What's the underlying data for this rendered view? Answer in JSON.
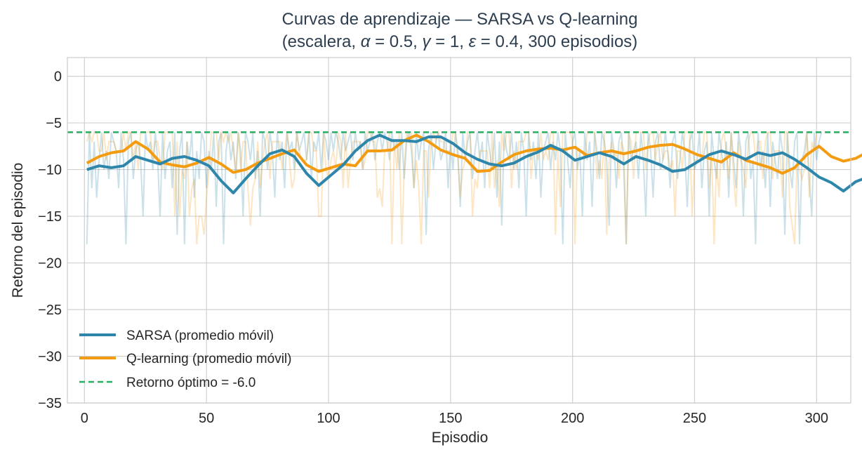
{
  "chart_data": {
    "type": "line",
    "title_line1": "Curvas de aprendizaje — SARSA vs Q-learning",
    "title_line2_prefix": "(escalera, ",
    "title_line2_params": [
      {
        "sym": "α",
        "val": "0.5"
      },
      {
        "sym": "γ",
        "val": "1"
      },
      {
        "sym": "ε",
        "val": "0.4"
      }
    ],
    "title_line2_suffix": "300 episodios)",
    "xlabel": "Episodio",
    "ylabel": "Retorno del episodio",
    "xlim": [
      -7,
      314
    ],
    "ylim": [
      -35,
      2
    ],
    "xticks": [
      0,
      50,
      100,
      150,
      200,
      250,
      300
    ],
    "yticks": [
      0,
      -5,
      -10,
      -15,
      -20,
      -25,
      -30,
      -35
    ],
    "grid": true,
    "legend_position": "lower-left",
    "optimal_return": -6.0,
    "colors": {
      "sarsa": "#2e86ab",
      "qlearning": "#f39c12",
      "optimal": "#27ae60",
      "title": "#2c3e50",
      "grid": "#d0d0d0"
    },
    "series": [
      {
        "name": "SARSA (promedio móvil)",
        "key": "sarsa_ma",
        "x_start": 1,
        "x_step": 5,
        "values": [
          -10,
          -9.6,
          -9.8,
          -9.6,
          -8.6,
          -9.0,
          -9.4,
          -8.8,
          -8.6,
          -9.0,
          -9.6,
          -11.2,
          -12.5,
          -11.0,
          -9.6,
          -8.3,
          -7.9,
          -8.6,
          -10.4,
          -11.7,
          -10.6,
          -9.5,
          -8.0,
          -6.9,
          -6.3,
          -6.9,
          -6.9,
          -7.0,
          -6.5,
          -6.5,
          -7.2,
          -8.2,
          -8.9,
          -9.4,
          -9.6,
          -9.3,
          -8.6,
          -8.1,
          -7.4,
          -8.0,
          -9.0,
          -8.6,
          -8.2,
          -8.6,
          -9.4,
          -8.6,
          -9.0,
          -9.5,
          -10.2,
          -10.0,
          -9.2,
          -8.4,
          -8.0,
          -8.4,
          -8.9,
          -8.2,
          -8.5,
          -8.2,
          -8.9,
          -9.8,
          -10.8,
          -11.4,
          -12.3,
          -11.3,
          -10.8
        ],
        "raw": [
          -18,
          -6,
          -12,
          -7,
          -13,
          -9,
          -6,
          -10,
          -8,
          -11,
          -6,
          -7,
          -8,
          -12,
          -6,
          -9,
          -18,
          -7,
          -6,
          -11,
          -8,
          -7,
          -9,
          -15,
          -6,
          -8,
          -7,
          -10,
          -6,
          -9,
          -15,
          -6,
          -11,
          -8,
          -7,
          -12,
          -6,
          -17,
          -8,
          -6,
          -18,
          -7,
          -9,
          -6,
          -13,
          -8,
          -11,
          -6,
          -7,
          -12,
          -8,
          -10,
          -6,
          -14,
          -7,
          -6,
          -18,
          -8,
          -6,
          -9,
          -7,
          -11,
          -6,
          -8,
          -15,
          -6,
          -7,
          -9,
          -6,
          -11,
          -8,
          -15,
          -6,
          -7,
          -10,
          -6,
          -8,
          -13,
          -6,
          -9,
          -7,
          -12,
          -6,
          -8,
          -7,
          -10,
          -6,
          -8,
          -7,
          -6,
          -9,
          -6,
          -11,
          -7,
          -8,
          -6,
          -10,
          -6,
          -7,
          -9,
          -6,
          -8,
          -6,
          -7,
          -9,
          -6,
          -8,
          -7,
          -6,
          -9,
          -6,
          -8,
          -7,
          -10,
          -6,
          -8,
          -7,
          -6,
          -9,
          -7,
          -6,
          -8,
          -6,
          -7,
          -9,
          -6,
          -8,
          -7,
          -10,
          -6,
          -11,
          -7,
          -6,
          -8,
          -12,
          -6,
          -9,
          -7,
          -6,
          -17,
          -8,
          -6,
          -10,
          -7,
          -6,
          -9,
          -8,
          -6,
          -12,
          -7,
          -10,
          -6,
          -8,
          -14,
          -6,
          -9,
          -7,
          -6,
          -11,
          -8,
          -6,
          -9,
          -7,
          -12,
          -6,
          -8,
          -10,
          -6,
          -13,
          -7,
          -16,
          -6,
          -8,
          -9,
          -6,
          -10,
          -7,
          -12,
          -6,
          -8,
          -15,
          -6,
          -9,
          -7,
          -11,
          -6,
          -13,
          -8,
          -7,
          -6,
          -10,
          -7,
          -9,
          -6,
          -8,
          -18,
          -6,
          -9,
          -12,
          -7,
          -6,
          -10,
          -8,
          -15,
          -6,
          -9,
          -7,
          -14,
          -6,
          -8,
          -11,
          -6,
          -7,
          -9,
          -16,
          -6,
          -8,
          -12,
          -7,
          -6,
          -10,
          -18,
          -6,
          -9,
          -8,
          -7,
          -11,
          -6,
          -9,
          -15,
          -6,
          -8,
          -13,
          -7,
          -6,
          -10,
          -9,
          -6,
          -8,
          -12,
          -7,
          -6,
          -11,
          -9,
          -6,
          -8,
          -14,
          -7,
          -6,
          -10,
          -9,
          -6,
          -12,
          -8,
          -7,
          -15,
          -6,
          -9,
          -11,
          -6,
          -8,
          -10,
          -7,
          -13,
          -6,
          -9,
          -12,
          -6,
          -8,
          -15,
          -7,
          -6,
          -11,
          -9,
          -18,
          -6,
          -10,
          -8,
          -12,
          -6,
          -14,
          -7,
          -9,
          -11,
          -6,
          -8,
          -17,
          -6,
          -10,
          -12,
          -7,
          -6,
          -18,
          -9,
          -8,
          -6,
          -11,
          -15,
          -6,
          -9,
          -7,
          -6
        ]
      },
      {
        "name": "Q-learning (promedio móvil)",
        "key": "qlearning_ma",
        "x_start": 1,
        "x_step": 5,
        "values": [
          -9.3,
          -8.6,
          -8.2,
          -8.0,
          -7.0,
          -7.8,
          -9.2,
          -9.5,
          -9.7,
          -9.3,
          -8.7,
          -9.4,
          -10.3,
          -10.0,
          -9.3,
          -8.8,
          -8.3,
          -7.9,
          -9.5,
          -10.2,
          -9.8,
          -9.4,
          -9.6,
          -8.0,
          -8.0,
          -7.9,
          -6.9,
          -6.3,
          -7.0,
          -7.9,
          -8.4,
          -8.8,
          -10.2,
          -10.1,
          -9.2,
          -8.4,
          -8.0,
          -7.8,
          -7.7,
          -7.9,
          -7.6,
          -8.5,
          -8.2,
          -8.0,
          -8.3,
          -8.0,
          -7.6,
          -7.4,
          -7.3,
          -7.8,
          -8.4,
          -8.8,
          -9.2,
          -8.2,
          -9.0,
          -9.4,
          -9.8,
          -10.4,
          -9.8,
          -8.4,
          -7.5,
          -8.6,
          -9.1,
          -8.8,
          -8.1
        ]
      }
    ]
  },
  "legend": {
    "sarsa": "SARSA (promedio móvil)",
    "qlearning": "Q-learning (promedio móvil)",
    "optimal": "Retorno óptimo = -6.0"
  }
}
